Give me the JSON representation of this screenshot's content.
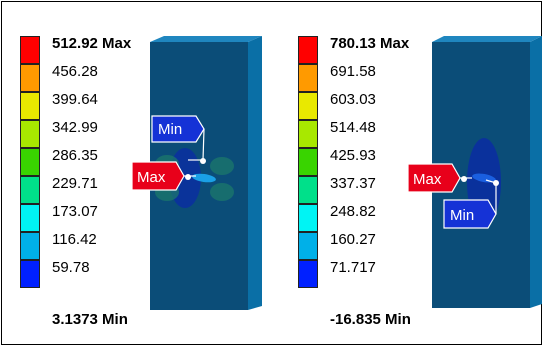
{
  "colors": [
    "#ff0000",
    "#ff9a00",
    "#e9e900",
    "#a8e800",
    "#39d400",
    "#00e08a",
    "#00f4f4",
    "#00b0e8",
    "#0020ff"
  ],
  "plots": [
    {
      "legend": [
        "512.92 Max",
        "456.28",
        "399.64",
        "342.99",
        "286.35",
        "229.71",
        "173.07",
        "116.42",
        "59.78",
        "3.1373 Min"
      ],
      "max_tag": "Max",
      "min_tag": "Min"
    },
    {
      "legend": [
        "780.13 Max",
        "691.58",
        "603.03",
        "514.48",
        "425.93",
        "337.37",
        "248.82",
        "160.27",
        "71.717",
        "-16.835 Min"
      ],
      "max_tag": "Max",
      "min_tag": "Min"
    }
  ]
}
